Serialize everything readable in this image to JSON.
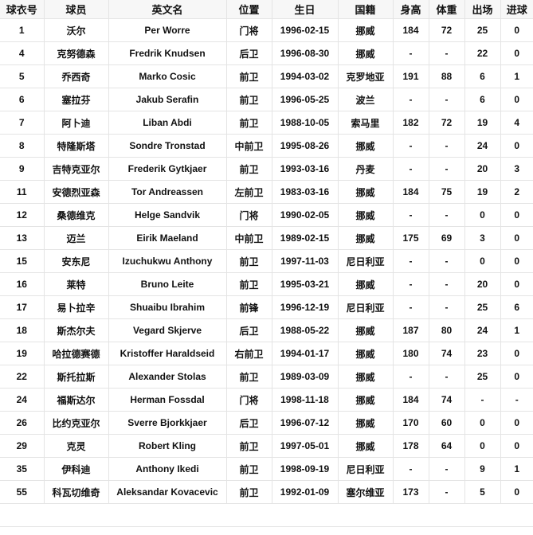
{
  "table": {
    "headers": [
      "球衣号",
      "球员",
      "英文名",
      "位置",
      "生日",
      "国籍",
      "身高",
      "体重",
      "出场",
      "进球"
    ],
    "rows": [
      [
        "1",
        "沃尔",
        "Per Worre",
        "门将",
        "1996-02-15",
        "挪威",
        "184",
        "72",
        "25",
        "0"
      ],
      [
        "4",
        "克努德森",
        "Fredrik Knudsen",
        "后卫",
        "1996-08-30",
        "挪威",
        "-",
        "-",
        "22",
        "0"
      ],
      [
        "5",
        "乔西奇",
        "Marko Cosic",
        "前卫",
        "1994-03-02",
        "克罗地亚",
        "191",
        "88",
        "6",
        "1"
      ],
      [
        "6",
        "塞拉芬",
        "Jakub Serafin",
        "前卫",
        "1996-05-25",
        "波兰",
        "-",
        "-",
        "6",
        "0"
      ],
      [
        "7",
        "阿卜迪",
        "Liban Abdi",
        "前卫",
        "1988-10-05",
        "索马里",
        "182",
        "72",
        "19",
        "4"
      ],
      [
        "8",
        "特隆斯塔",
        "Sondre Tronstad",
        "中前卫",
        "1995-08-26",
        "挪威",
        "-",
        "-",
        "24",
        "0"
      ],
      [
        "9",
        "吉特克亚尔",
        "Frederik Gytkjaer",
        "前卫",
        "1993-03-16",
        "丹麦",
        "-",
        "-",
        "20",
        "3"
      ],
      [
        "11",
        "安德烈亚森",
        "Tor Andreassen",
        "左前卫",
        "1983-03-16",
        "挪威",
        "184",
        "75",
        "19",
        "2"
      ],
      [
        "12",
        "桑德维克",
        "Helge Sandvik",
        "门将",
        "1990-02-05",
        "挪威",
        "-",
        "-",
        "0",
        "0"
      ],
      [
        "13",
        "迈兰",
        "Eirik Maeland",
        "中前卫",
        "1989-02-15",
        "挪威",
        "175",
        "69",
        "3",
        "0"
      ],
      [
        "15",
        "安东尼",
        "Izuchukwu Anthony",
        "前卫",
        "1997-11-03",
        "尼日利亚",
        "-",
        "-",
        "0",
        "0"
      ],
      [
        "16",
        "莱特",
        "Bruno Leite",
        "前卫",
        "1995-03-21",
        "挪威",
        "-",
        "-",
        "20",
        "0"
      ],
      [
        "17",
        "易卜拉辛",
        "Shuaibu Ibrahim",
        "前锋",
        "1996-12-19",
        "尼日利亚",
        "-",
        "-",
        "25",
        "6"
      ],
      [
        "18",
        "斯杰尔夫",
        "Vegard Skjerve",
        "后卫",
        "1988-05-22",
        "挪威",
        "187",
        "80",
        "24",
        "1"
      ],
      [
        "19",
        "哈拉德赛德",
        "Kristoffer Haraldseid",
        "右前卫",
        "1994-01-17",
        "挪威",
        "180",
        "74",
        "23",
        "0"
      ],
      [
        "22",
        "斯托拉斯",
        "Alexander Stolas",
        "前卫",
        "1989-03-09",
        "挪威",
        "-",
        "-",
        "25",
        "0"
      ],
      [
        "24",
        "福斯达尔",
        "Herman Fossdal",
        "门将",
        "1998-11-18",
        "挪威",
        "184",
        "74",
        "-",
        "-"
      ],
      [
        "26",
        "比约克亚尔",
        "Sverre Bjorkkjaer",
        "后卫",
        "1996-07-12",
        "挪威",
        "170",
        "60",
        "0",
        "0"
      ],
      [
        "29",
        "克灵",
        "Robert Kling",
        "前卫",
        "1997-05-01",
        "挪威",
        "178",
        "64",
        "0",
        "0"
      ],
      [
        "35",
        "伊科迪",
        "Anthony Ikedi",
        "前卫",
        "1998-09-19",
        "尼日利亚",
        "-",
        "-",
        "9",
        "1"
      ],
      [
        "55",
        "科瓦切维奇",
        "Aleksandar Kovacevic",
        "前卫",
        "1992-01-09",
        "塞尔维亚",
        "173",
        "-",
        "5",
        "0"
      ]
    ]
  }
}
